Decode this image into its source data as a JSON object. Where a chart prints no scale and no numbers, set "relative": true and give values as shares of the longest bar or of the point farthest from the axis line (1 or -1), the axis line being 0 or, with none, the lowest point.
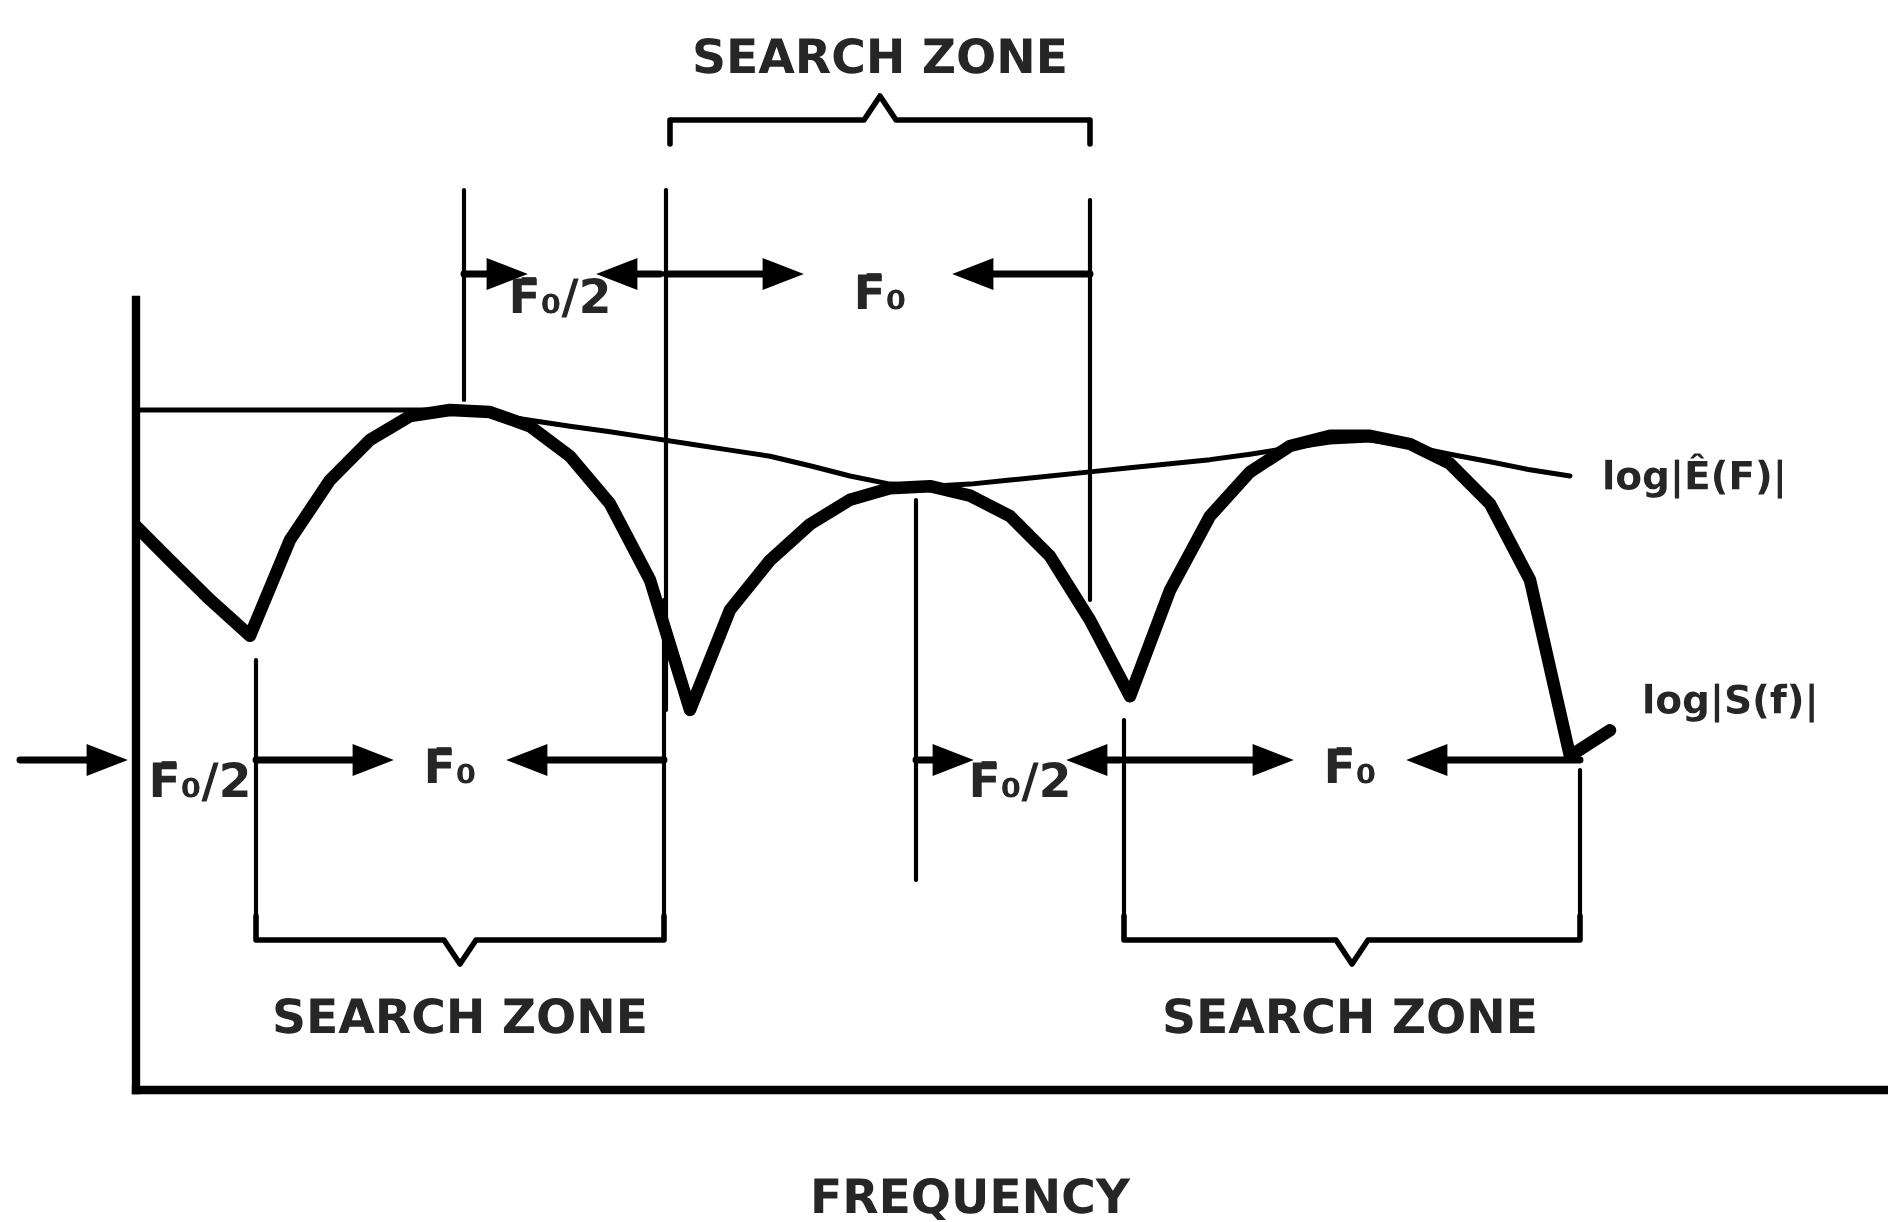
{
  "chart_data": {
    "type": "line",
    "relative": true,
    "xlabel": "FREQUENCY",
    "legend": false,
    "marker": "none",
    "line_style": "solid",
    "categories": [
      null,
      null,
      null,
      null,
      null,
      null,
      null,
      null,
      null,
      null,
      null,
      null,
      null,
      null,
      null,
      null,
      null,
      null,
      null,
      null,
      null,
      null,
      null,
      null,
      null,
      null,
      null,
      null,
      null,
      null,
      null,
      null,
      null,
      null,
      null,
      null,
      null,
      null
    ],
    "series": [
      {
        "name": "log|Ê(F)|",
        "color": "#000000",
        "values": [
          1.0,
          1.0,
          1.0,
          1.0,
          1.0,
          1.0,
          1.0,
          1.0,
          1.0,
          0.994,
          0.985,
          0.976,
          0.968,
          0.959,
          0.95,
          0.941,
          0.932,
          0.918,
          0.903,
          0.891,
          0.888,
          0.891,
          0.897,
          0.903,
          0.909,
          0.915,
          0.921,
          0.927,
          0.935,
          0.944,
          0.953,
          0.956,
          0.947,
          0.935,
          0.924,
          0.912,
          0.903,
          null
        ]
      },
      {
        "name": "log|S(f)|",
        "color": "#000000",
        "values": [
          0.838,
          0.779,
          0.721,
          0.668,
          0.809,
          0.897,
          0.956,
          0.991,
          1.0,
          0.997,
          0.976,
          0.932,
          0.862,
          0.75,
          0.559,
          0.706,
          0.779,
          0.832,
          0.868,
          0.885,
          0.888,
          0.874,
          0.844,
          0.785,
          0.691,
          0.579,
          0.735,
          0.844,
          0.909,
          0.947,
          0.962,
          0.962,
          0.95,
          0.921,
          0.862,
          0.75,
          0.491,
          0.529
        ]
      }
    ],
    "annotations": [
      "SEARCH ZONE",
      "F̄₀/2",
      "F̄₀",
      "F̄₀/2",
      "F̄₀",
      "SEARCH ZONE",
      "F̄₀/2",
      "F̄₀",
      "SEARCH ZONE"
    ]
  }
}
